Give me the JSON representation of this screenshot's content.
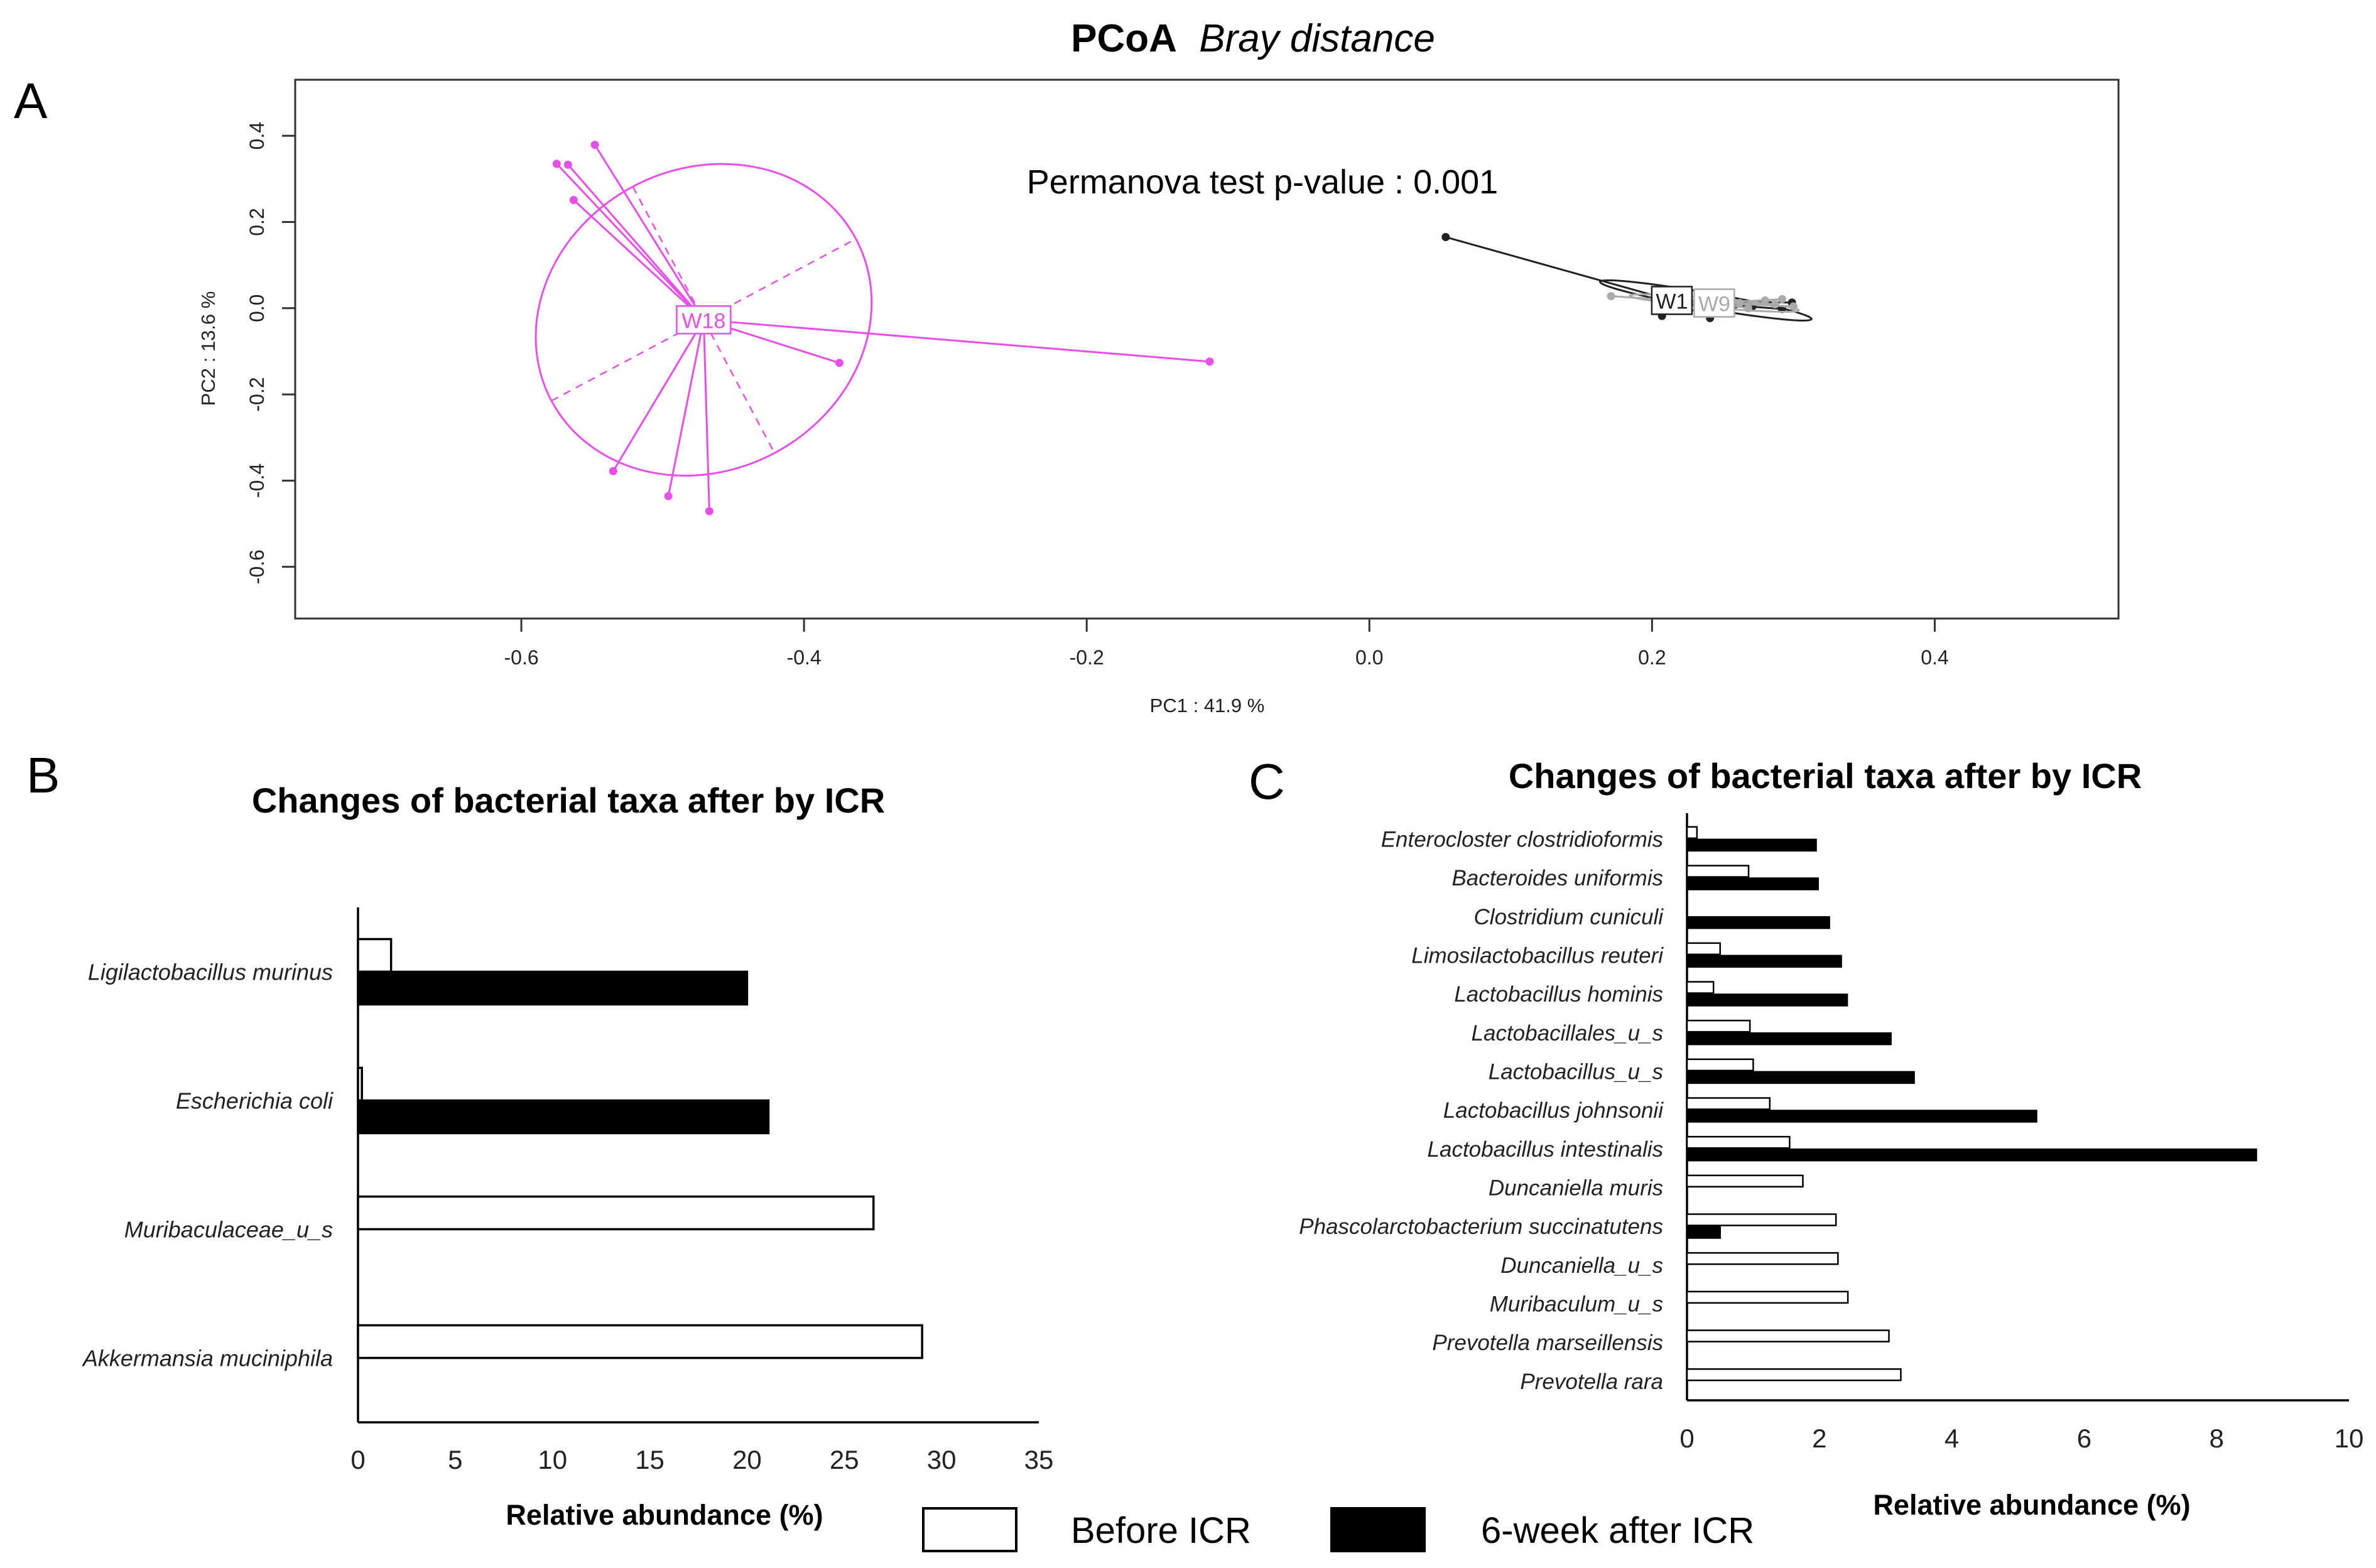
{
  "figure": {
    "panel_labels": [
      "A",
      "B",
      "C"
    ]
  },
  "chart_data": [
    {
      "type": "scatter",
      "panel": "A",
      "title_bold": "PCoA",
      "title_italic": "Bray distance",
      "annotation": "Permanova test p-value : 0.001",
      "xlabel": "PC1 : 41.9 %",
      "ylabel": "PC2 : 13.6 %",
      "xlim": [
        -0.76,
        0.53
      ],
      "ylim": [
        -0.72,
        0.53
      ],
      "xticks": [
        -0.6,
        -0.4,
        -0.2,
        0.0,
        0.2,
        0.4
      ],
      "xtick_labels": [
        "-0.6",
        "-0.4",
        "-0.2",
        "0.0",
        "0.2",
        "0.4"
      ],
      "yticks": [
        0.4,
        0.2,
        0.0,
        -0.2,
        -0.4,
        -0.6
      ],
      "ytick_labels": [
        "0.4",
        "0.2",
        "0.0",
        "-0.2",
        "-0.4",
        "-0.6"
      ],
      "groups": [
        {
          "name": "W18",
          "color": "#e84ee8",
          "centroid": [
            -0.471,
            -0.027
          ],
          "points": [
            [
              -0.575,
              0.335
            ],
            [
              -0.567,
              0.333
            ],
            [
              -0.548,
              0.379
            ],
            [
              -0.563,
              0.251
            ],
            [
              -0.375,
              -0.127
            ],
            [
              -0.113,
              -0.124
            ],
            [
              -0.535,
              -0.378
            ],
            [
              -0.496,
              -0.436
            ],
            [
              -0.467,
              -0.471
            ]
          ],
          "ellipse": {
            "center": [
              -0.471,
              -0.027
            ],
            "rx": 0.122,
            "ry": 0.35,
            "angle_deg": -28
          }
        },
        {
          "name": "W1",
          "color": "#222222",
          "centroid": [
            0.214,
            0.018
          ],
          "points": [
            [
              0.054,
              0.165
            ],
            [
              0.207,
              -0.018
            ],
            [
              0.241,
              -0.023
            ],
            [
              0.292,
              -0.002
            ],
            [
              0.299,
              0.013
            ],
            [
              0.271,
              0.004
            ],
            [
              0.259,
              0.009
            ],
            [
              0.237,
              0.002
            ]
          ],
          "ellipse": {
            "center": [
              0.238,
              0.018
            ],
            "rx": 0.076,
            "ry": 0.018,
            "angle_deg": 10
          }
        },
        {
          "name": "W9",
          "color": "#aaaaaa",
          "centroid": [
            0.244,
            0.012
          ],
          "points": [
            [
              0.171,
              0.028
            ],
            [
              0.28,
              0.018
            ],
            [
              0.287,
              0.009
            ],
            [
              0.3,
              0.004
            ],
            [
              0.268,
              0.0
            ],
            [
              0.262,
              0.012
            ],
            [
              0.292,
              0.021
            ]
          ],
          "ellipse": {
            "center": [
              0.244,
              0.012
            ],
            "rx": 0.06,
            "ry": 0.011,
            "angle_deg": 5
          }
        }
      ]
    },
    {
      "type": "bar",
      "panel": "B",
      "orientation": "horizontal",
      "title": "Changes of bacterial taxa after by ICR",
      "xlabel": "Relative abundance (%)",
      "xlim": [
        0,
        35
      ],
      "xticks": [
        0,
        5,
        10,
        15,
        20,
        25,
        30,
        35
      ],
      "xtick_labels": [
        "0",
        "5",
        "10",
        "15",
        "20",
        "25",
        "30",
        "35"
      ],
      "categories": [
        "Ligilactobacillus murinus",
        "Escherichia coli",
        "Muribaculaceae_u_s",
        "Akkermansia muciniphila"
      ],
      "series": [
        {
          "name": "Before ICR",
          "values": [
            1.7,
            0.2,
            26.5,
            29.0
          ]
        },
        {
          "name": "6-week after ICR",
          "values": [
            20.0,
            21.1,
            0,
            0
          ]
        }
      ]
    },
    {
      "type": "bar",
      "panel": "C",
      "orientation": "horizontal",
      "title": "Changes of bacterial taxa after by ICR",
      "xlabel": "Relative abundance (%)",
      "xlim": [
        0,
        10
      ],
      "xticks": [
        0,
        2,
        4,
        6,
        8,
        10
      ],
      "xtick_labels": [
        "0",
        "2",
        "4",
        "6",
        "8",
        "10"
      ],
      "categories": [
        "Enterocloster clostridioformis",
        "Bacteroides uniformis",
        "Clostridium cuniculi",
        "Limosilactobacillus reuteri",
        "Lactobacillus hominis",
        "Lactobacillales_u_s",
        "Lactobacillus_u_s",
        "Lactobacillus johnsonii",
        "Lactobacillus intestinalis",
        "Duncaniella muris",
        "Phascolarctobacterium succinatutens",
        "Duncaniella_u_s",
        "Muribaculum_u_s",
        "Prevotella marseillensis",
        "Prevotella rara"
      ],
      "series": [
        {
          "name": "Before ICR",
          "values": [
            0.15,
            0.93,
            0.0,
            0.5,
            0.4,
            0.95,
            1.0,
            1.25,
            1.55,
            1.75,
            2.25,
            2.28,
            2.43,
            3.05,
            3.23
          ]
        },
        {
          "name": "6-week after ICR",
          "values": [
            1.95,
            1.98,
            2.15,
            2.33,
            2.42,
            3.08,
            3.43,
            5.28,
            8.6,
            0,
            0.5,
            0,
            0,
            0,
            0
          ]
        }
      ]
    }
  ],
  "legend": {
    "items": [
      {
        "label": "Before ICR",
        "fill": "#ffffff"
      },
      {
        "label": "6-week after ICR",
        "fill": "#000000"
      }
    ]
  }
}
